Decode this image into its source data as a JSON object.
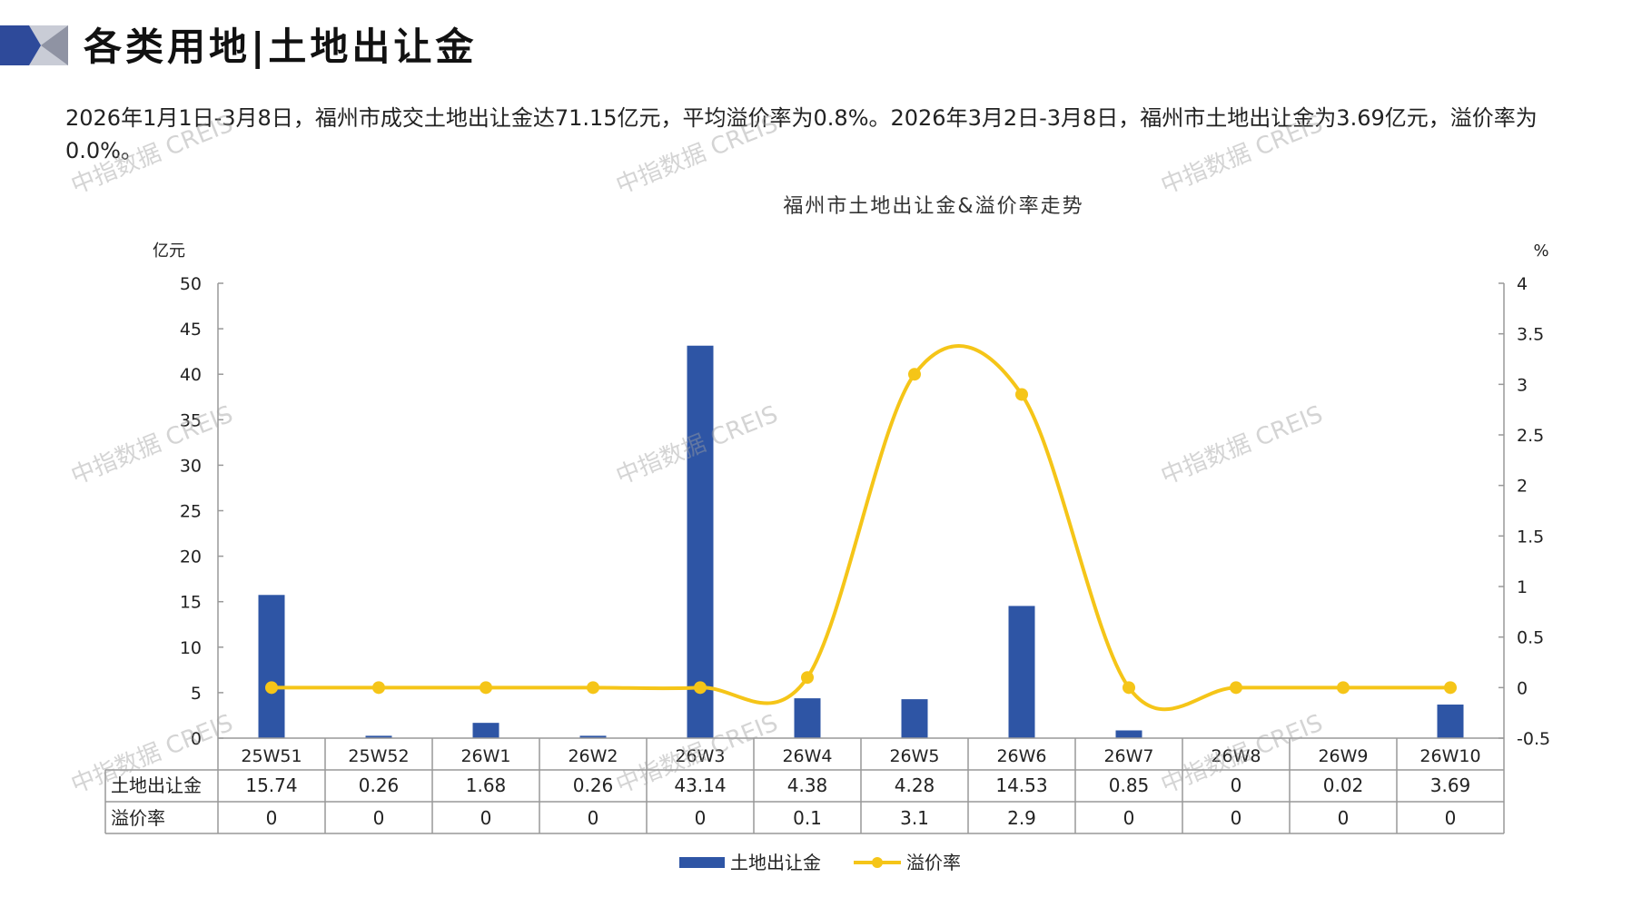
{
  "page": {
    "title": "各类用地|土地出让金",
    "summary": "2026年1月1日-3月8日，福州市成交土地出让金达71.15亿元，平均溢价率为0.8%。2026年3月2日-3月8日，福州市土地出让金为3.69亿元，溢价率为0.0%。",
    "watermark": "中指数据 CREIS"
  },
  "colors": {
    "bar": "#2E55A5",
    "line": "#F5C518",
    "grid": "#999999",
    "header_dark": "#2E4A9A",
    "header_light": "#C9CCD6"
  },
  "chart_data": {
    "type": "bar",
    "title": "福州市土地出让金&溢价率走势",
    "categories": [
      "25W51",
      "25W52",
      "26W1",
      "26W2",
      "26W3",
      "26W4",
      "26W5",
      "26W6",
      "26W7",
      "26W8",
      "26W9",
      "26W10"
    ],
    "series": [
      {
        "name": "土地出让金",
        "type": "bar",
        "axis": "left",
        "values": [
          15.74,
          0.26,
          1.68,
          0.26,
          43.14,
          4.38,
          4.28,
          14.53,
          0.85,
          0,
          0.02,
          3.69
        ],
        "labels": [
          "15.74",
          "0.26",
          "1.68",
          "0.26",
          "43.14",
          "4.38",
          "4.28",
          "14.53",
          "0.85",
          "0",
          "0.02",
          "3.69"
        ]
      },
      {
        "name": "溢价率",
        "type": "line",
        "axis": "right",
        "values": [
          0,
          0,
          0,
          0,
          0,
          0.1,
          3.1,
          2.9,
          0,
          0,
          0,
          0
        ],
        "labels": [
          "0",
          "0",
          "0",
          "0",
          "0",
          "0.1",
          "3.1",
          "2.9",
          "0",
          "0",
          "0",
          "0"
        ]
      }
    ],
    "left_axis": {
      "label": "亿元",
      "ylim": [
        0,
        50
      ],
      "ticks": [
        "0",
        "5",
        "10",
        "15",
        "20",
        "25",
        "30",
        "35",
        "40",
        "45",
        "50"
      ]
    },
    "right_axis": {
      "label": "%",
      "ylim": [
        -0.5,
        4
      ],
      "ticks": [
        "-0.5",
        "0",
        "0.5",
        "1",
        "1.5",
        "2",
        "2.5",
        "3",
        "3.5",
        "4"
      ]
    },
    "legend_position": "bottom",
    "grid": false,
    "data_table": true
  }
}
